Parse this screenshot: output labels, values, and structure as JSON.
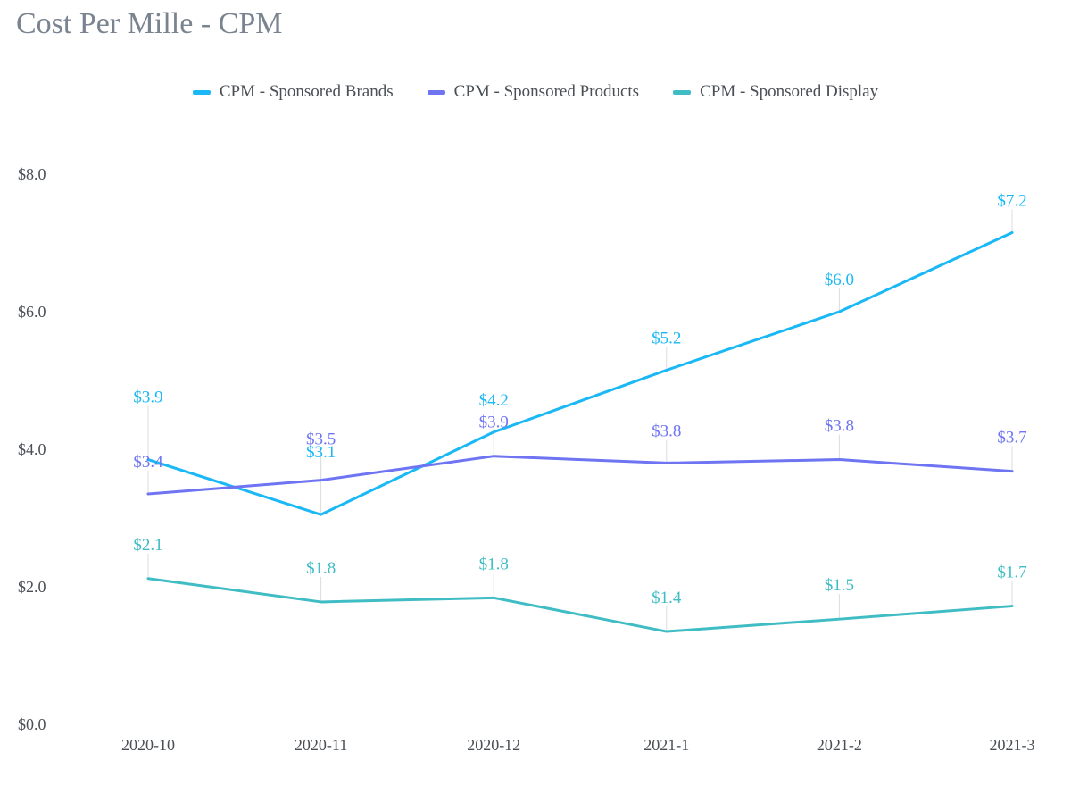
{
  "page_title": "Cost Per Mille - CPM",
  "legend": [
    {
      "label": "CPM - Sponsored Brands",
      "color": "#1ab8f5"
    },
    {
      "label": "CPM - Sponsored Products",
      "color": "#6e74f2"
    },
    {
      "label": "CPM - Sponsored Display",
      "color": "#3fbcc4"
    }
  ],
  "chart_data": {
    "type": "line",
    "title": "Cost Per Mille - CPM",
    "xlabel": "",
    "ylabel": "",
    "categories": [
      "2020-10",
      "2020-11",
      "2020-12",
      "2021-1",
      "2021-2",
      "2021-3"
    ],
    "ylim": [
      0,
      8
    ],
    "yticks": [
      0,
      2,
      4,
      6,
      8
    ],
    "ytick_labels": [
      "$0.0",
      "$2.0",
      "$4.0",
      "$6.0",
      "$8.0"
    ],
    "grid": false,
    "legend_position": "top-center",
    "series": [
      {
        "name": "CPM - Sponsored Brands",
        "color": "#1ab8f5",
        "values": [
          3.85,
          3.05,
          4.25,
          5.15,
          6.0,
          7.15
        ],
        "labels": [
          "$3.9",
          "$3.1",
          "$4.2",
          "$5.2",
          "$6.0",
          "$7.2"
        ]
      },
      {
        "name": "CPM - Sponsored Products",
        "color": "#6e74f2",
        "values": [
          3.35,
          3.55,
          3.9,
          3.8,
          3.85,
          3.68
        ],
        "labels": [
          "$3.4",
          "$3.5",
          "$3.9",
          "$3.8",
          "$3.8",
          "$3.7"
        ]
      },
      {
        "name": "CPM - Sponsored Display",
        "color": "#3fbcc4",
        "values": [
          2.12,
          1.78,
          1.84,
          1.35,
          1.53,
          1.72
        ],
        "labels": [
          "$2.1",
          "$1.8",
          "$1.8",
          "$1.4",
          "$1.5",
          "$1.7"
        ]
      }
    ]
  }
}
